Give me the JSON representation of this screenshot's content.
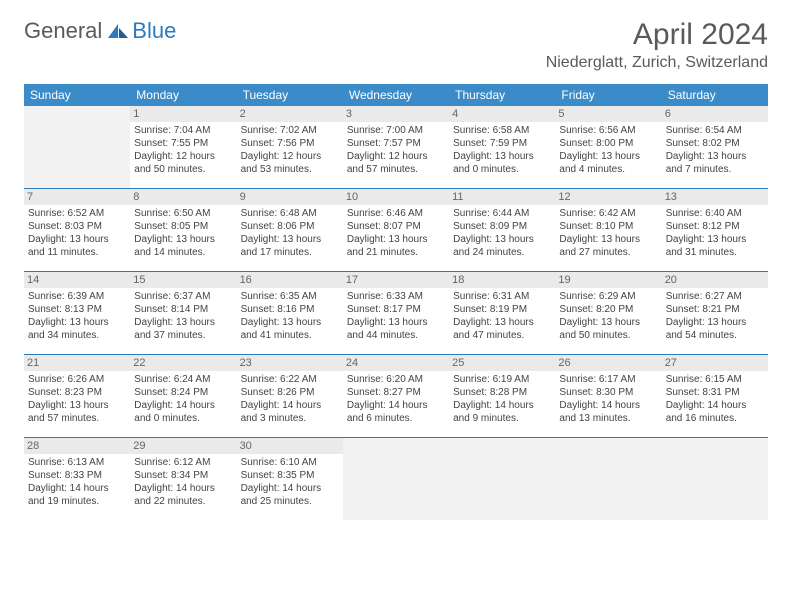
{
  "brand": {
    "part1": "General",
    "part2": "Blue"
  },
  "title": "April 2024",
  "location": "Niederglatt, Zurich, Switzerland",
  "colors": {
    "header_bar": "#3b8bc9",
    "week_divider": "#2b7bbf",
    "daynum_bg": "#eaeaea",
    "empty_bg": "#f2f2f2",
    "text": "#444444",
    "title_text": "#5a5a5a",
    "page_bg": "#ffffff"
  },
  "layout": {
    "columns": 7,
    "rows": 5,
    "first_weekday_offset": 1
  },
  "days_of_week": [
    "Sunday",
    "Monday",
    "Tuesday",
    "Wednesday",
    "Thursday",
    "Friday",
    "Saturday"
  ],
  "weeks": [
    [
      null,
      {
        "n": "1",
        "sr": "Sunrise: 7:04 AM",
        "ss": "Sunset: 7:55 PM",
        "d1": "Daylight: 12 hours",
        "d2": "and 50 minutes."
      },
      {
        "n": "2",
        "sr": "Sunrise: 7:02 AM",
        "ss": "Sunset: 7:56 PM",
        "d1": "Daylight: 12 hours",
        "d2": "and 53 minutes."
      },
      {
        "n": "3",
        "sr": "Sunrise: 7:00 AM",
        "ss": "Sunset: 7:57 PM",
        "d1": "Daylight: 12 hours",
        "d2": "and 57 minutes."
      },
      {
        "n": "4",
        "sr": "Sunrise: 6:58 AM",
        "ss": "Sunset: 7:59 PM",
        "d1": "Daylight: 13 hours",
        "d2": "and 0 minutes."
      },
      {
        "n": "5",
        "sr": "Sunrise: 6:56 AM",
        "ss": "Sunset: 8:00 PM",
        "d1": "Daylight: 13 hours",
        "d2": "and 4 minutes."
      },
      {
        "n": "6",
        "sr": "Sunrise: 6:54 AM",
        "ss": "Sunset: 8:02 PM",
        "d1": "Daylight: 13 hours",
        "d2": "and 7 minutes."
      }
    ],
    [
      {
        "n": "7",
        "sr": "Sunrise: 6:52 AM",
        "ss": "Sunset: 8:03 PM",
        "d1": "Daylight: 13 hours",
        "d2": "and 11 minutes."
      },
      {
        "n": "8",
        "sr": "Sunrise: 6:50 AM",
        "ss": "Sunset: 8:05 PM",
        "d1": "Daylight: 13 hours",
        "d2": "and 14 minutes."
      },
      {
        "n": "9",
        "sr": "Sunrise: 6:48 AM",
        "ss": "Sunset: 8:06 PM",
        "d1": "Daylight: 13 hours",
        "d2": "and 17 minutes."
      },
      {
        "n": "10",
        "sr": "Sunrise: 6:46 AM",
        "ss": "Sunset: 8:07 PM",
        "d1": "Daylight: 13 hours",
        "d2": "and 21 minutes."
      },
      {
        "n": "11",
        "sr": "Sunrise: 6:44 AM",
        "ss": "Sunset: 8:09 PM",
        "d1": "Daylight: 13 hours",
        "d2": "and 24 minutes."
      },
      {
        "n": "12",
        "sr": "Sunrise: 6:42 AM",
        "ss": "Sunset: 8:10 PM",
        "d1": "Daylight: 13 hours",
        "d2": "and 27 minutes."
      },
      {
        "n": "13",
        "sr": "Sunrise: 6:40 AM",
        "ss": "Sunset: 8:12 PM",
        "d1": "Daylight: 13 hours",
        "d2": "and 31 minutes."
      }
    ],
    [
      {
        "n": "14",
        "sr": "Sunrise: 6:39 AM",
        "ss": "Sunset: 8:13 PM",
        "d1": "Daylight: 13 hours",
        "d2": "and 34 minutes."
      },
      {
        "n": "15",
        "sr": "Sunrise: 6:37 AM",
        "ss": "Sunset: 8:14 PM",
        "d1": "Daylight: 13 hours",
        "d2": "and 37 minutes."
      },
      {
        "n": "16",
        "sr": "Sunrise: 6:35 AM",
        "ss": "Sunset: 8:16 PM",
        "d1": "Daylight: 13 hours",
        "d2": "and 41 minutes."
      },
      {
        "n": "17",
        "sr": "Sunrise: 6:33 AM",
        "ss": "Sunset: 8:17 PM",
        "d1": "Daylight: 13 hours",
        "d2": "and 44 minutes."
      },
      {
        "n": "18",
        "sr": "Sunrise: 6:31 AM",
        "ss": "Sunset: 8:19 PM",
        "d1": "Daylight: 13 hours",
        "d2": "and 47 minutes."
      },
      {
        "n": "19",
        "sr": "Sunrise: 6:29 AM",
        "ss": "Sunset: 8:20 PM",
        "d1": "Daylight: 13 hours",
        "d2": "and 50 minutes."
      },
      {
        "n": "20",
        "sr": "Sunrise: 6:27 AM",
        "ss": "Sunset: 8:21 PM",
        "d1": "Daylight: 13 hours",
        "d2": "and 54 minutes."
      }
    ],
    [
      {
        "n": "21",
        "sr": "Sunrise: 6:26 AM",
        "ss": "Sunset: 8:23 PM",
        "d1": "Daylight: 13 hours",
        "d2": "and 57 minutes."
      },
      {
        "n": "22",
        "sr": "Sunrise: 6:24 AM",
        "ss": "Sunset: 8:24 PM",
        "d1": "Daylight: 14 hours",
        "d2": "and 0 minutes."
      },
      {
        "n": "23",
        "sr": "Sunrise: 6:22 AM",
        "ss": "Sunset: 8:26 PM",
        "d1": "Daylight: 14 hours",
        "d2": "and 3 minutes."
      },
      {
        "n": "24",
        "sr": "Sunrise: 6:20 AM",
        "ss": "Sunset: 8:27 PM",
        "d1": "Daylight: 14 hours",
        "d2": "and 6 minutes."
      },
      {
        "n": "25",
        "sr": "Sunrise: 6:19 AM",
        "ss": "Sunset: 8:28 PM",
        "d1": "Daylight: 14 hours",
        "d2": "and 9 minutes."
      },
      {
        "n": "26",
        "sr": "Sunrise: 6:17 AM",
        "ss": "Sunset: 8:30 PM",
        "d1": "Daylight: 14 hours",
        "d2": "and 13 minutes."
      },
      {
        "n": "27",
        "sr": "Sunrise: 6:15 AM",
        "ss": "Sunset: 8:31 PM",
        "d1": "Daylight: 14 hours",
        "d2": "and 16 minutes."
      }
    ],
    [
      {
        "n": "28",
        "sr": "Sunrise: 6:13 AM",
        "ss": "Sunset: 8:33 PM",
        "d1": "Daylight: 14 hours",
        "d2": "and 19 minutes."
      },
      {
        "n": "29",
        "sr": "Sunrise: 6:12 AM",
        "ss": "Sunset: 8:34 PM",
        "d1": "Daylight: 14 hours",
        "d2": "and 22 minutes."
      },
      {
        "n": "30",
        "sr": "Sunrise: 6:10 AM",
        "ss": "Sunset: 8:35 PM",
        "d1": "Daylight: 14 hours",
        "d2": "and 25 minutes."
      },
      null,
      null,
      null,
      null
    ]
  ]
}
